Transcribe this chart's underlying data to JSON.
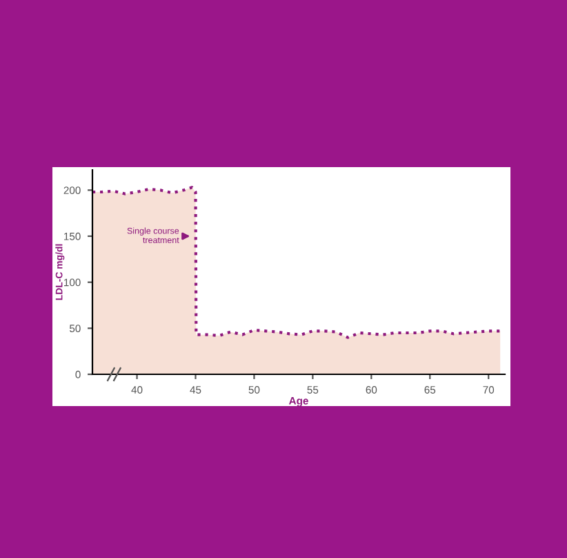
{
  "chart_data": {
    "type": "area",
    "xlabel": "Age",
    "ylabel": "LDL-C mg/dl",
    "series": [
      {
        "color": "#8e1a7e",
        "x": [
          36.2,
          37,
          38,
          39,
          40,
          41,
          42,
          43,
          44,
          44.7,
          45,
          45.05,
          46,
          47,
          48,
          49,
          50,
          51,
          52,
          53,
          54,
          55,
          56,
          57,
          58,
          59,
          60,
          61,
          62,
          63,
          64,
          65,
          66,
          67,
          68,
          69,
          70,
          71
        ],
        "values": [
          198,
          198,
          199,
          196,
          198,
          201,
          200,
          197,
          200,
          203,
          198,
          43,
          43,
          42,
          46,
          43,
          48,
          47,
          46,
          44,
          43,
          47,
          47,
          46,
          40,
          45,
          44,
          43,
          45,
          45,
          45,
          47,
          47,
          44,
          45,
          46,
          47,
          47
        ]
      }
    ],
    "xlim": [
      36.2,
      71.4
    ],
    "ylim": [
      0,
      222
    ],
    "xticks": [
      40,
      45,
      50,
      55,
      60,
      65,
      70
    ],
    "yticks": [
      0,
      50,
      100,
      150,
      200
    ],
    "line_style": "dotted",
    "grid": false,
    "legend": false,
    "annotations": [
      {
        "text": "Single course\ntreatment",
        "x": 45,
        "y": 150
      }
    ]
  }
}
